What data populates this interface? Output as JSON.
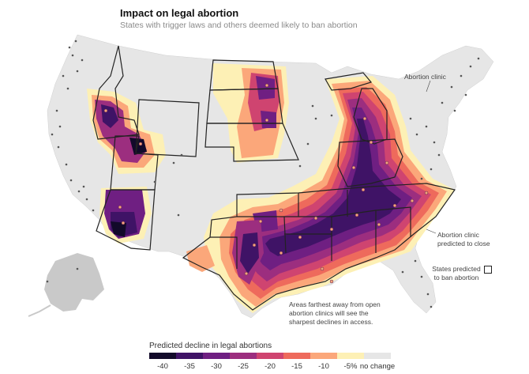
{
  "title": "Impact on legal abortion",
  "subtitle": "States with trigger laws and others deemed likely to ban abortion",
  "annotations": {
    "clinic": "Abortion clinic",
    "closing_clinic": "Abortion clinic predicted to close",
    "ban_states": "States predicted to ban abortion",
    "farthest": "Areas farthest away from open abortion clinics will see the sharpest declines in access."
  },
  "legend": {
    "title": "Predicted decline in legal abortions",
    "labels": [
      "-40",
      "-35",
      "-30",
      "-25",
      "-20",
      "-15",
      "-10",
      "-5%",
      "no change"
    ],
    "colors": [
      "#120a2a",
      "#3f1366",
      "#6f1f82",
      "#9c2e7f",
      "#cf4470",
      "#ee6a5c",
      "#fba77a",
      "#fdf0b5",
      "#e6e6e6"
    ]
  },
  "colors": {
    "land": "#e6e6e6",
    "ocean": "#ffffff",
    "alaska": "#c9c9c9",
    "clinic_dot": "#555555",
    "closing_clinic_dot": "#f4a47c",
    "state_border": "#222222"
  }
}
